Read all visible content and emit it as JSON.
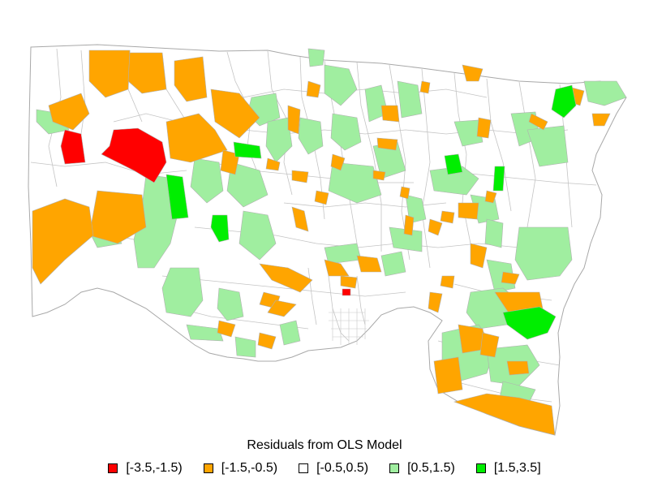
{
  "legend": {
    "title": "Residuals from OLS Model",
    "bins": [
      {
        "label": "[-3.5,-1.5)",
        "color": "#ff0000"
      },
      {
        "label": "[-1.5,-0.5)",
        "color": "#ffa500"
      },
      {
        "label": "[-0.5,0.5)",
        "color": "#ffffff"
      },
      {
        "label": "[0.5,1.5)",
        "color": "#a0eea0"
      },
      {
        "label": "[1.5,3.5]",
        "color": "#00ee00"
      }
    ]
  },
  "colors": {
    "boundary": "#b0b0b0",
    "background": "#ffffff"
  }
}
